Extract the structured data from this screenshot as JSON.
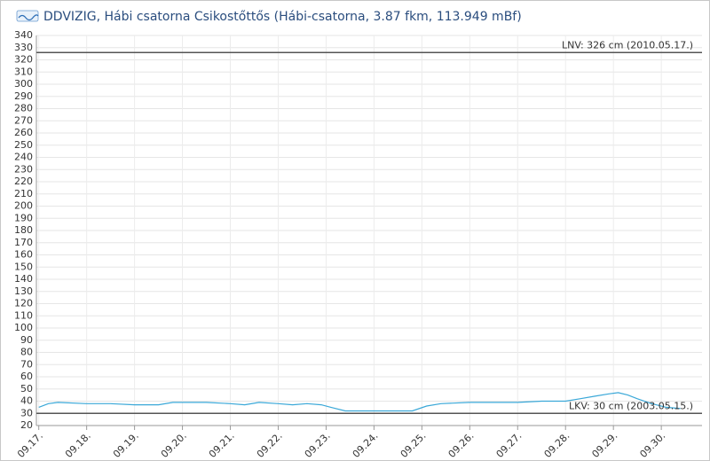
{
  "chart_data": {
    "type": "line",
    "title": "DDVIZIG, Hábi csatorna Csikostőttős (Hábi-csatorna, 3.87 fkm, 113.949 mBf)",
    "x": [
      0,
      0.2,
      0.4,
      1,
      1.5,
      2,
      2.5,
      2.8,
      3,
      3.5,
      4,
      4.3,
      4.6,
      5,
      5.3,
      5.6,
      5.9,
      6.1,
      6.4,
      7,
      7.6,
      7.8,
      8.1,
      8.4,
      9,
      9.5,
      10,
      10.5,
      11,
      11.3,
      11.6,
      11.9,
      12.1,
      12.3,
      12.5,
      12.8,
      13.1,
      13.4
    ],
    "series": [
      {
        "color": "#3aa8d8",
        "values": [
          35,
          38,
          39,
          38,
          38,
          37,
          37,
          39,
          39,
          39,
          38,
          37,
          39,
          38,
          37,
          38,
          37,
          35,
          32,
          32,
          32,
          32,
          36,
          38,
          39,
          39,
          39,
          40,
          40,
          42,
          44,
          46,
          47,
          45,
          42,
          38,
          35,
          34
        ]
      }
    ],
    "xlim": [
      -0.05,
      13.85
    ],
    "xticks": [
      {
        "value": 0,
        "label": "09.17."
      },
      {
        "value": 1,
        "label": "09.18."
      },
      {
        "value": 2,
        "label": "09.19."
      },
      {
        "value": 3,
        "label": "09.20."
      },
      {
        "value": 4,
        "label": "09.21."
      },
      {
        "value": 5,
        "label": "09.22."
      },
      {
        "value": 6,
        "label": "09.23."
      },
      {
        "value": 7,
        "label": "09.24."
      },
      {
        "value": 8,
        "label": "09.25."
      },
      {
        "value": 9,
        "label": "09.26."
      },
      {
        "value": 10,
        "label": "09.27."
      },
      {
        "value": 11,
        "label": "09.28."
      },
      {
        "value": 12,
        "label": "09.29."
      },
      {
        "value": 13,
        "label": "09.30."
      }
    ],
    "ylim": [
      20,
      340
    ],
    "yticks": [
      20,
      30,
      40,
      50,
      60,
      70,
      80,
      90,
      100,
      110,
      120,
      130,
      140,
      150,
      160,
      170,
      180,
      190,
      200,
      210,
      220,
      230,
      240,
      250,
      260,
      270,
      280,
      290,
      300,
      310,
      320,
      330,
      340
    ],
    "grid": true,
    "reference_lines": [
      {
        "value": 326,
        "label": "LNV: 326 cm (2010.05.17.)",
        "color": "#555555"
      },
      {
        "value": 30,
        "label": "LKV: 30 cm (2003.05.15.)",
        "color": "#555555"
      }
    ]
  }
}
